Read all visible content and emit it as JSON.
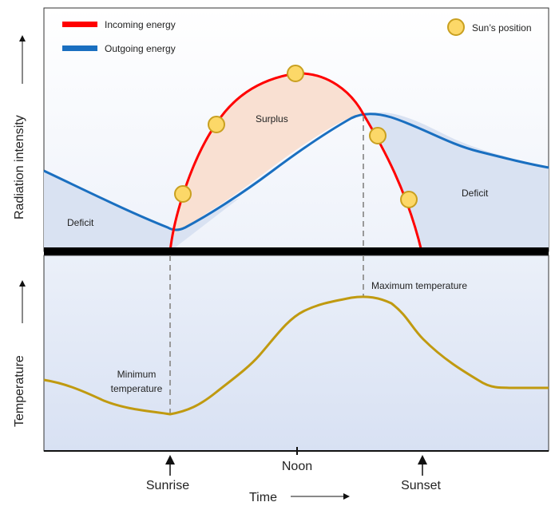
{
  "legend": {
    "incoming": "Incoming energy",
    "outgoing": "Outgoing energy",
    "sun": "Sun’s position"
  },
  "labels": {
    "surplus": "Surplus",
    "deficit_left": "Deficit",
    "deficit_right": "Deficit",
    "max_temp": "Maximum temperature",
    "min_temp_line1": "Minimum",
    "min_temp_line2": "temperature"
  },
  "axes": {
    "top_y": "Radiation intensity",
    "bottom_y": "Temperature",
    "x": "Time",
    "noon": "Noon",
    "sunrise": "Sunrise",
    "sunset": "Sunset"
  },
  "colors": {
    "incoming": "#ff0000",
    "outgoing": "#1a6fc0",
    "temperature": "#c09a10",
    "surplus_fill": "#f9e0d2",
    "deficit_fill": "#d9e2f2",
    "sun_fill": "#fcd868",
    "sun_stroke": "#c9a020"
  }
}
